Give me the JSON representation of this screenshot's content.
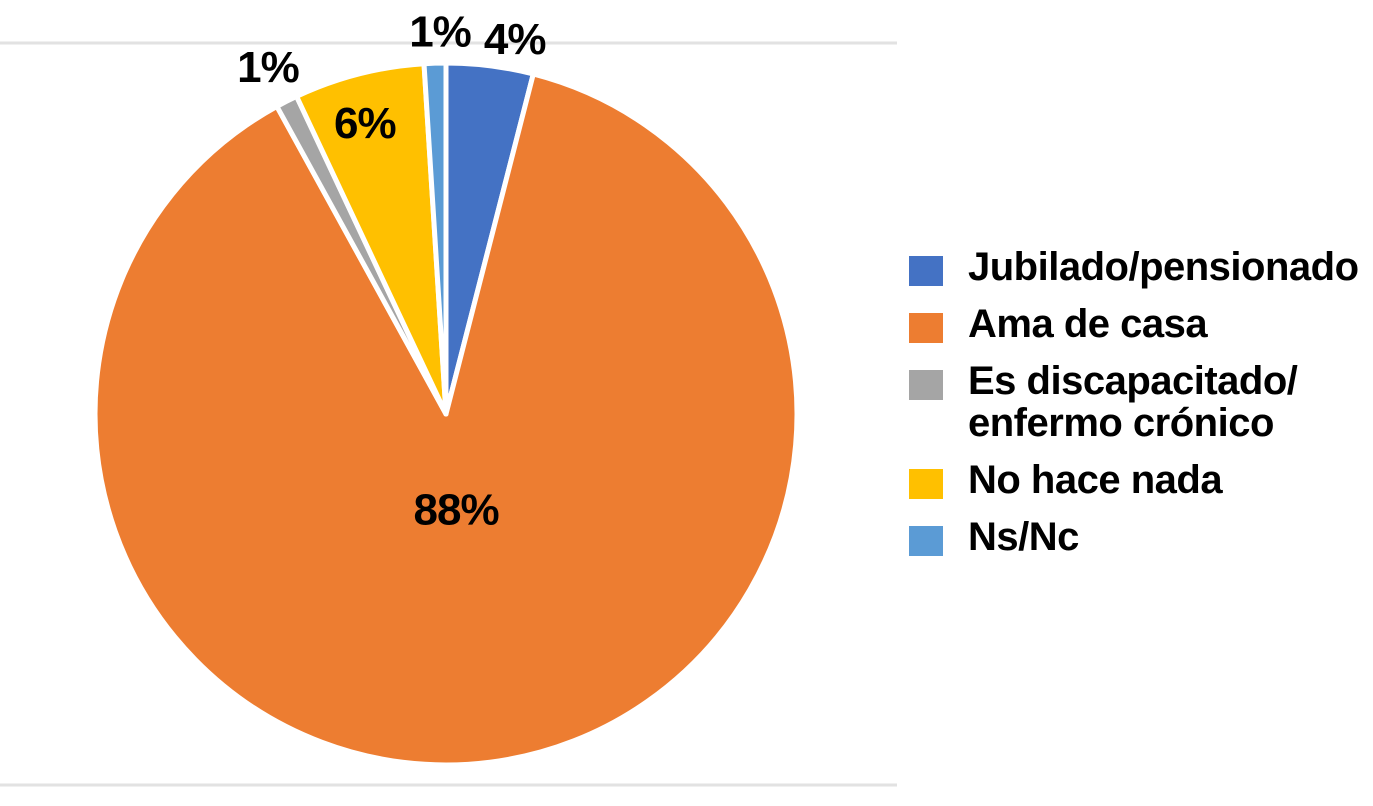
{
  "chart_data": {
    "type": "pie",
    "categories": [
      "Jubilado/pensionado",
      "Ama de casa",
      "Es discapacitado/enfermo crónico",
      "No hace nada",
      "Ns/Nc"
    ],
    "values": [
      4,
      88,
      1,
      6,
      1
    ],
    "data_labels": [
      "4%",
      "88%",
      "1%",
      "6%",
      "1%"
    ],
    "colors": [
      "#4472C4",
      "#ED7D31",
      "#A5A5A5",
      "#FFC000",
      "#5B9BD5"
    ],
    "title": "",
    "legend_position": "right",
    "start_angle_deg": 0,
    "direction": "clockwise",
    "slice_border_color": "#FFFFFF",
    "gridline_color": "#E2E2E2",
    "label_color": "#000000",
    "background": "#FFFFFF"
  },
  "legend": {
    "items": [
      {
        "label": "Jubilado/pensionado",
        "color": "#4472C4"
      },
      {
        "label": "Ama de casa",
        "color": "#ED7D31"
      },
      {
        "label": "Es discapacitado/\nenfermo crónico",
        "color": "#A5A5A5"
      },
      {
        "label": "No hace nada",
        "color": "#FFC000"
      },
      {
        "label": "Ns/Nc",
        "color": "#5B9BD5"
      }
    ]
  }
}
